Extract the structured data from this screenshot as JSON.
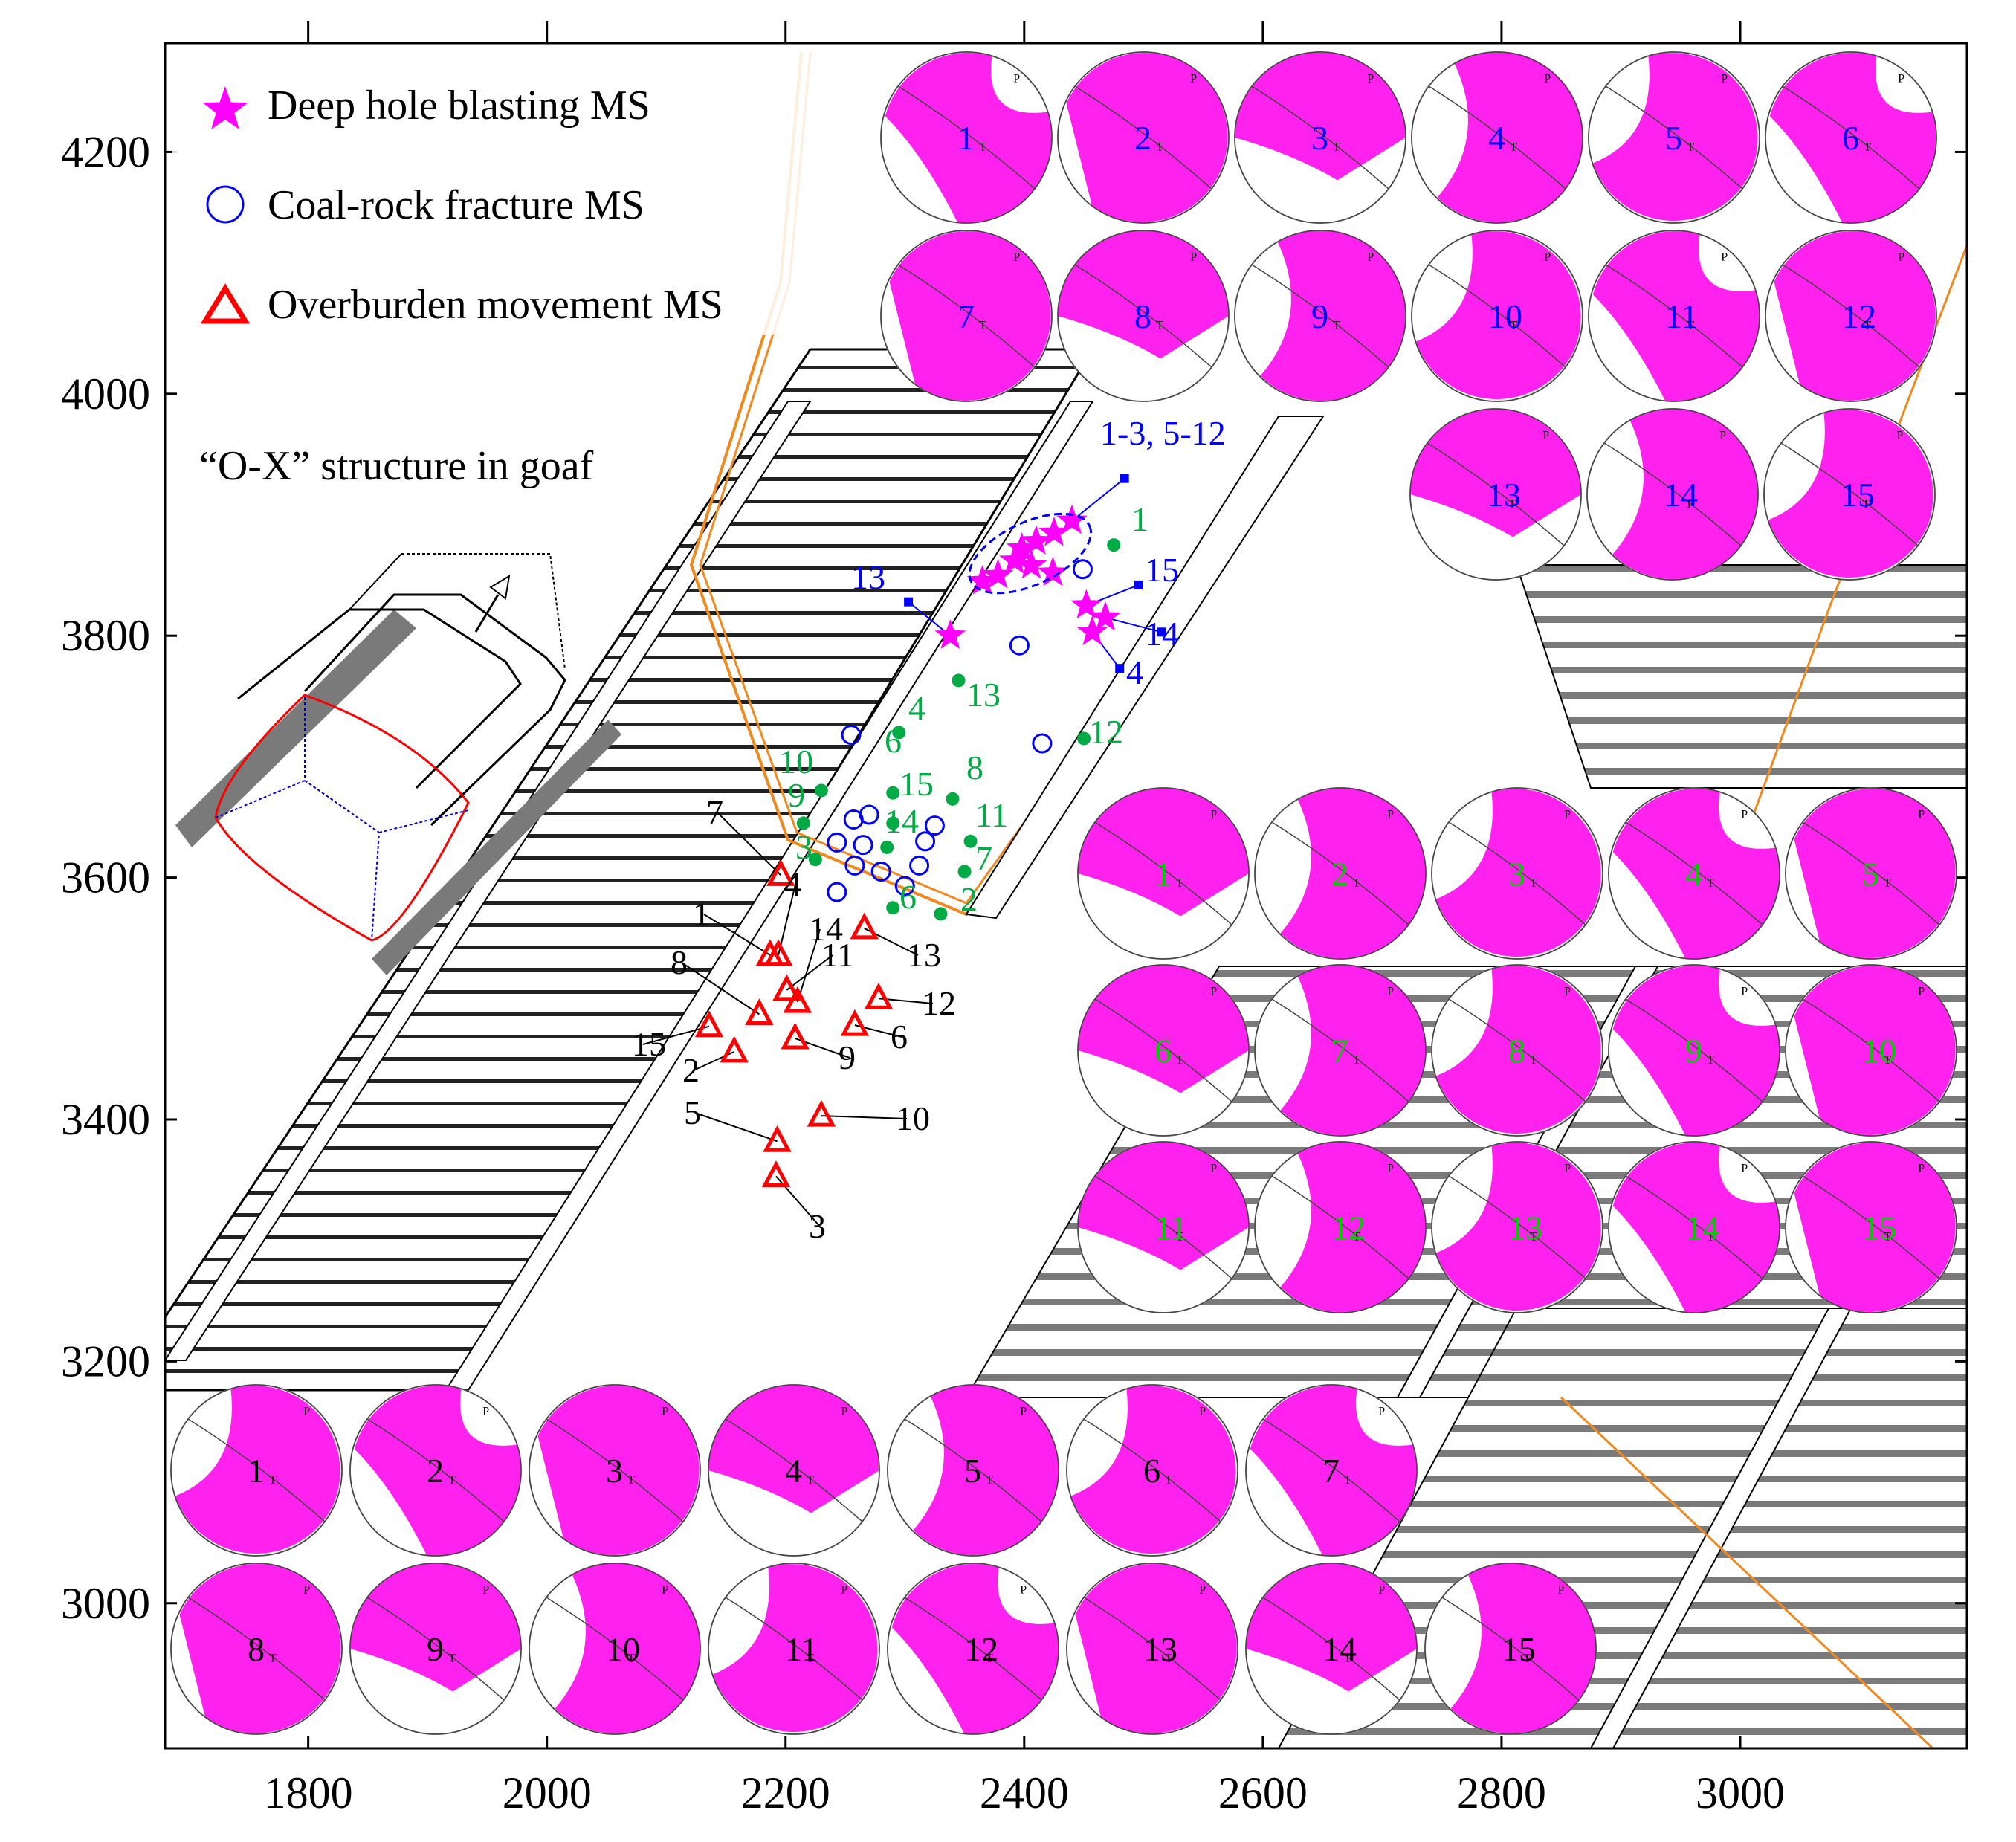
{
  "chart_data": {
    "type": "scatter",
    "title": "",
    "xlabel": "",
    "ylabel": "",
    "xlim": [
      1680,
      3190
    ],
    "ylim": [
      2880,
      4290
    ],
    "x_ticks": [
      "1800",
      "2000",
      "2200",
      "2400",
      "2600",
      "2800",
      "3000"
    ],
    "y_ticks": [
      "3000",
      "3200",
      "3400",
      "3600",
      "3800",
      "4000",
      "4200"
    ],
    "grid": false,
    "legend_position": "top-left",
    "legend": [
      {
        "label": "Deep hole blasting MS",
        "symbol": "star",
        "color": "#ff00ff"
      },
      {
        "label": "Coal-rock fracture MS",
        "symbol": "open-circle",
        "color": "#0000ff"
      },
      {
        "label": "Overburden movement MS",
        "symbol": "open-triangle",
        "color": "#ff0000"
      }
    ],
    "annotation": "“O-X” structure in goaf",
    "series": [
      {
        "name": "Deep hole blasting MS",
        "symbol": "star",
        "color": "#ff00ff",
        "points": [
          {
            "x": 2365,
            "y": 3845
          },
          {
            "x": 2378,
            "y": 3850
          },
          {
            "x": 2392,
            "y": 3862
          },
          {
            "x": 2398,
            "y": 3872
          },
          {
            "x": 2406,
            "y": 3858
          },
          {
            "x": 2410,
            "y": 3878
          },
          {
            "x": 2424,
            "y": 3852
          },
          {
            "x": 2425,
            "y": 3885
          },
          {
            "x": 2440,
            "y": 3895
          },
          {
            "x": 2338,
            "y": 3800
          },
          {
            "x": 2452,
            "y": 3825
          },
          {
            "x": 2468,
            "y": 3815
          },
          {
            "x": 2457,
            "y": 3803
          }
        ]
      },
      {
        "name": "Coal-rock fracture MS",
        "symbol": "open-circle",
        "color": "#0000ff",
        "points": [
          {
            "x": 2449,
            "y": 3855
          },
          {
            "x": 2396,
            "y": 3792
          },
          {
            "x": 2415,
            "y": 3711
          },
          {
            "x": 2255,
            "y": 3718
          },
          {
            "x": 2243,
            "y": 3629
          },
          {
            "x": 2257,
            "y": 3648
          },
          {
            "x": 2270,
            "y": 3652
          },
          {
            "x": 2265,
            "y": 3627
          },
          {
            "x": 2258,
            "y": 3610
          },
          {
            "x": 2280,
            "y": 3605
          },
          {
            "x": 2300,
            "y": 3593
          },
          {
            "x": 2312,
            "y": 3610
          },
          {
            "x": 2317,
            "y": 3630
          },
          {
            "x": 2325,
            "y": 3643
          },
          {
            "x": 2243,
            "y": 3588
          }
        ],
        "labels": [
          "1",
          "2",
          "3",
          "4",
          "5",
          "6",
          "7",
          "8",
          "9",
          "10",
          "11",
          "12",
          "13",
          "14",
          "15"
        ],
        "blue_labels": [
          "1-3, 5-12",
          "13",
          "15",
          "14",
          "4"
        ],
        "green_labels": [
          "1",
          "13",
          "4",
          "12",
          "10",
          "6",
          "8",
          "9",
          "15",
          "3",
          "14",
          "11",
          "7",
          "6",
          "2"
        ]
      },
      {
        "name": "Overburden movement MS",
        "symbol": "open-triangle",
        "color": "#ff0000",
        "points": [
          {
            "x": 2187,
            "y": 3536
          },
          {
            "x": 2157,
            "y": 3456
          },
          {
            "x": 2192,
            "y": 3353
          },
          {
            "x": 2194,
            "y": 3536
          },
          {
            "x": 2193,
            "y": 3382
          },
          {
            "x": 2258,
            "y": 3478
          },
          {
            "x": 2196,
            "y": 3602
          },
          {
            "x": 2178,
            "y": 3487
          },
          {
            "x": 2208,
            "y": 3467
          },
          {
            "x": 2230,
            "y": 3403
          },
          {
            "x": 2201,
            "y": 3507
          },
          {
            "x": 2278,
            "y": 3500
          },
          {
            "x": 2266,
            "y": 3558
          },
          {
            "x": 2210,
            "y": 3497
          },
          {
            "x": 2136,
            "y": 3477
          }
        ],
        "labels": [
          "1",
          "2",
          "3",
          "4",
          "5",
          "6",
          "7",
          "8",
          "9",
          "10",
          "11",
          "12",
          "13",
          "14",
          "15"
        ]
      }
    ],
    "beachballs": [
      {
        "group": "blasting",
        "label_color": "#0000ff",
        "labels": [
          "1",
          "2",
          "3",
          "4",
          "5",
          "6",
          "7",
          "8",
          "9",
          "10",
          "11",
          "12",
          "13",
          "14",
          "15"
        ]
      },
      {
        "group": "coal-rock fracture",
        "label_color": "#00cc00",
        "labels": [
          "1",
          "2",
          "3",
          "4",
          "5",
          "6",
          "7",
          "8",
          "9",
          "10",
          "11",
          "12",
          "13",
          "14",
          "15"
        ]
      },
      {
        "group": "overburden movement",
        "label_color": "#000000",
        "labels": [
          "1",
          "2",
          "3",
          "4",
          "5",
          "6",
          "7",
          "8",
          "9",
          "10",
          "11",
          "12",
          "13",
          "14",
          "15"
        ]
      }
    ],
    "beachball_axis_letters": [
      "P",
      "T"
    ]
  }
}
